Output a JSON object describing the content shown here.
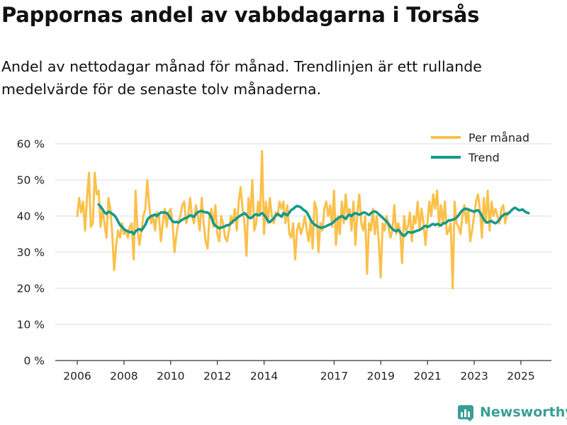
{
  "header": {
    "title": "Pappornas andel av vabbdagarna i Torsås",
    "subtitle": "Andel av nettodagar månad för månad. Trendlinjen är ett rullande medelvärde för de senaste tolv månaderna."
  },
  "brand": {
    "name": "Newsworthy",
    "icon": "newsworthy-logo-icon",
    "color": "#3a9e92"
  },
  "colors": {
    "monthly": "#fbc04a",
    "trend": "#16998a",
    "grid": "#dddddd",
    "axis": "#333333"
  },
  "chart_data": {
    "type": "line",
    "title": "Pappornas andel av vabbdagarna i Torsås",
    "xlabel": "",
    "ylabel": "",
    "ylim": [
      0,
      60
    ],
    "xlim": [
      2006.0,
      2025.5
    ],
    "y_ticks": [
      0,
      10,
      20,
      30,
      40,
      50,
      60
    ],
    "y_tick_labels": [
      "0 %",
      "10 %",
      "20 %",
      "30 %",
      "40 %",
      "50 %",
      "60 %"
    ],
    "x_ticks": [
      2006,
      2008,
      2010,
      2012,
      2014,
      2017,
      2019,
      2021,
      2023,
      2025
    ],
    "x_tick_labels": [
      "2006",
      "2008",
      "2010",
      "2012",
      "2014",
      "2017",
      "2019",
      "2021",
      "2023",
      "2025"
    ],
    "grid": true,
    "legend": {
      "position": "top-right",
      "entries": [
        "Per månad",
        "Trend"
      ]
    },
    "series": [
      {
        "name": "Per månad",
        "color": "#fbc04a",
        "x_start": 2006.0,
        "step": 0.0833,
        "values": [
          40,
          45,
          41,
          44,
          36,
          45,
          52,
          37,
          38,
          52,
          46,
          47,
          37,
          42,
          38,
          34,
          45,
          42,
          35,
          25,
          32,
          36,
          34,
          38,
          35,
          36,
          34,
          37,
          38,
          28,
          47,
          36,
          32,
          36,
          40,
          42,
          50,
          43,
          38,
          40,
          36,
          41,
          40,
          33,
          38,
          42,
          37,
          41,
          42,
          38,
          30,
          35,
          38,
          40,
          43,
          44,
          38,
          40,
          45,
          40,
          38,
          43,
          40,
          36,
          45,
          38,
          33,
          31,
          40,
          42,
          37,
          43,
          35,
          33,
          40,
          38,
          34,
          33,
          36,
          40,
          38,
          42,
          36,
          44,
          48,
          42,
          38,
          29,
          45,
          40,
          50,
          36,
          38,
          44,
          40,
          58,
          35,
          44,
          38,
          45,
          40,
          38,
          41,
          40,
          44,
          42,
          44,
          38,
          43,
          35,
          34,
          38,
          28,
          36,
          38,
          35,
          37,
          40,
          36,
          33,
          39,
          31,
          44,
          42,
          30,
          38,
          36,
          42,
          44,
          40,
          43,
          37,
          47,
          32,
          40,
          35,
          44,
          38,
          46,
          40,
          42,
          36,
          44,
          32,
          41,
          46,
          38,
          36,
          40,
          24,
          38,
          36,
          42,
          35,
          40,
          33,
          23,
          38,
          36,
          40,
          37,
          34,
          36,
          43,
          35,
          38,
          36,
          27,
          40,
          36,
          37,
          41,
          33,
          40,
          38,
          44,
          36,
          42,
          38,
          32,
          38,
          44,
          40,
          46,
          42,
          47,
          37,
          43,
          38,
          44,
          35,
          36,
          38,
          20,
          44,
          38,
          37,
          35,
          40,
          43,
          38,
          42,
          33,
          36,
          40,
          44,
          46,
          42,
          34,
          45,
          38,
          47,
          36,
          44,
          40,
          42,
          40,
          38,
          42,
          43,
          38,
          41
        ]
      },
      {
        "name": "Trend",
        "color": "#16998a",
        "x_start": 2006.92,
        "step": 0.0833,
        "values": [
          43.2,
          42.6,
          41.8,
          41.0,
          40.6,
          41.2,
          41.0,
          40.6,
          40.2,
          39.5,
          38.4,
          37.5,
          37.0,
          36.4,
          36.0,
          35.8,
          35.5,
          35.6,
          35.0,
          35.8,
          36.2,
          36.4,
          36.0,
          36.8,
          37.6,
          39.0,
          39.6,
          40.0,
          40.2,
          40.4,
          40.0,
          40.6,
          41.0,
          41.0,
          41.0,
          40.8,
          40.2,
          39.2,
          38.5,
          38.3,
          38.4,
          38.2,
          38.6,
          39.0,
          39.3,
          39.5,
          39.8,
          40.2,
          40.0,
          39.8,
          40.6,
          41.1,
          41.3,
          41.4,
          41.2,
          41.0,
          41.0,
          40.5,
          39.5,
          38.0,
          37.3,
          37.0,
          36.6,
          36.8,
          37.0,
          37.2,
          37.5,
          37.5,
          38.0,
          38.6,
          38.9,
          39.4,
          39.8,
          40.2,
          40.5,
          40.8,
          40.3,
          39.6,
          39.4,
          39.7,
          40.3,
          40.5,
          40.2,
          40.5,
          40.8,
          40.3,
          39.6,
          38.6,
          38.3,
          38.9,
          39.3,
          40.2,
          40.6,
          40.2,
          39.8,
          40.8,
          40.5,
          40.2,
          41.0,
          41.7,
          42.0,
          42.5,
          42.8,
          42.6,
          42.4,
          41.8,
          41.5,
          41.0,
          40.0,
          38.9,
          38.1,
          37.6,
          37.3,
          37.0,
          36.8,
          36.8,
          37.0,
          37.2,
          37.5,
          37.7,
          38.0,
          38.5,
          39.0,
          39.4,
          39.7,
          40.0,
          39.6,
          39.2,
          40.0,
          40.4,
          40.0,
          40.6,
          40.8,
          40.6,
          40.4,
          40.6,
          41.0,
          40.9,
          40.6,
          40.3,
          40.8,
          41.2,
          41.3,
          41.0,
          40.5,
          40.0,
          39.5,
          39.0,
          38.5,
          37.8,
          37.0,
          36.4,
          36.0,
          35.8,
          36.2,
          35.5,
          34.8,
          34.5,
          35.0,
          35.6,
          35.5,
          35.4,
          35.6,
          35.8,
          36.0,
          36.2,
          36.5,
          37.0,
          37.3,
          37.0,
          37.2,
          37.6,
          37.8,
          37.5,
          37.8,
          37.6,
          37.4,
          38.0,
          38.0,
          38.4,
          38.8,
          38.8,
          39.0,
          39.2,
          39.6,
          40.2,
          41.0,
          41.6,
          42.0,
          42.0,
          41.8,
          41.6,
          41.4,
          41.2,
          41.5,
          41.6,
          41.0,
          40.0,
          39.0,
          38.4,
          38.2,
          38.5,
          38.6,
          38.2,
          38.0,
          38.4,
          39.0,
          39.8,
          40.3,
          40.6,
          40.5,
          40.9,
          41.5,
          42.0,
          42.3,
          42.0,
          41.6,
          41.7,
          41.8,
          41.3,
          41.0,
          40.8
        ]
      }
    ]
  }
}
